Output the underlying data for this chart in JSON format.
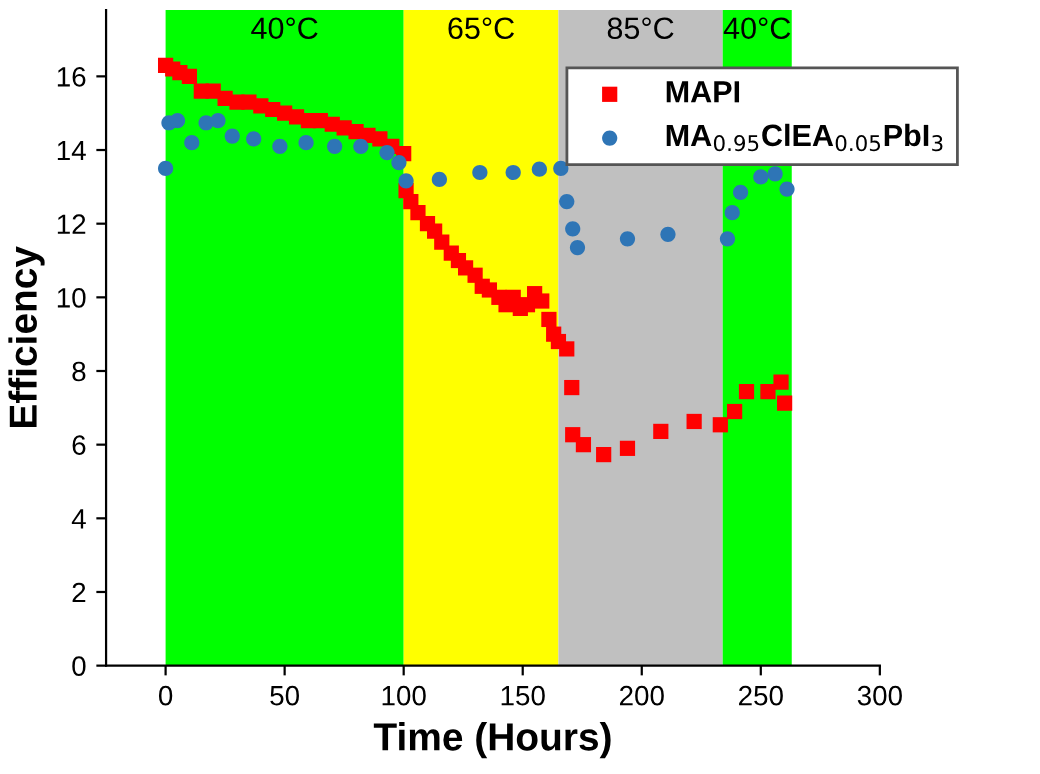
{
  "chart_data": {
    "type": "scatter",
    "xlabel": "Time (Hours)",
    "ylabel": "Efficiency",
    "xlim": [
      -25,
      300
    ],
    "xticks": [
      0,
      50,
      100,
      150,
      200,
      250,
      300
    ],
    "ylim": [
      0,
      17.8
    ],
    "yticks": [
      0,
      2,
      4,
      6,
      8,
      10,
      12,
      14,
      16
    ],
    "legend": "top right",
    "bands": [
      {
        "axis": "x",
        "from": 0,
        "to": 100,
        "label": "40°C",
        "color": "#00ff00"
      },
      {
        "axis": "x",
        "from": 100,
        "to": 165,
        "label": "65°C",
        "color": "#ffff00"
      },
      {
        "axis": "x",
        "from": 165,
        "to": 234,
        "label": "85°C",
        "color": "#c0c0c0"
      },
      {
        "axis": "x",
        "from": 234,
        "to": 263,
        "label": "40°C",
        "color": "#00ff00"
      }
    ],
    "series": [
      {
        "name": "MAPI",
        "color": "#ff0000",
        "marker": "square",
        "x": [
          0,
          3,
          6,
          10,
          15,
          20,
          25,
          30,
          35,
          40,
          45,
          50,
          55,
          60,
          65,
          70,
          75,
          80,
          85,
          90,
          95,
          100,
          101,
          103,
          106,
          110,
          113,
          116,
          120,
          123,
          126,
          130,
          133,
          136,
          140,
          143,
          146,
          149,
          152,
          155,
          158,
          161,
          163,
          165,
          168.5,
          170.6,
          171,
          175.5,
          184,
          194,
          208,
          222,
          233,
          239,
          244,
          253,
          258.5,
          260
        ],
        "values": [
          16.3,
          16.2,
          16.1,
          16.0,
          15.6,
          15.6,
          15.4,
          15.3,
          15.3,
          15.2,
          15.1,
          15.0,
          14.9,
          14.8,
          14.8,
          14.7,
          14.6,
          14.5,
          14.4,
          14.3,
          14.1,
          13.9,
          12.9,
          12.6,
          12.3,
          12.0,
          11.8,
          11.5,
          11.2,
          11.0,
          10.8,
          10.6,
          10.3,
          10.2,
          10.0,
          9.8,
          10.0,
          9.7,
          9.8,
          10.1,
          9.9,
          9.4,
          9.0,
          8.8,
          8.6,
          7.55,
          6.27,
          6.0,
          5.73,
          5.9,
          6.36,
          6.63,
          6.54,
          6.9,
          7.44,
          7.44,
          7.7,
          7.13
        ]
      },
      {
        "name": "MA$_{0.95}$ClEA$_{0.05}$PbI$_{3}$",
        "color": "#2e75b6",
        "marker": "circle",
        "x": [
          0,
          1.4,
          5,
          11,
          17,
          22,
          28,
          37,
          48,
          59,
          71,
          82,
          93,
          98,
          101,
          115,
          132,
          146,
          157,
          166,
          168.5,
          171,
          173,
          194,
          211,
          236,
          238,
          241.5,
          250,
          256,
          261
        ],
        "values": [
          13.5,
          14.74,
          14.8,
          14.2,
          14.74,
          14.8,
          14.38,
          14.3,
          14.1,
          14.2,
          14.1,
          14.1,
          13.93,
          13.66,
          13.16,
          13.2,
          13.39,
          13.39,
          13.48,
          13.5,
          12.6,
          11.86,
          11.35,
          11.59,
          11.71,
          11.59,
          12.3,
          12.85,
          13.27,
          13.35,
          12.94
        ]
      }
    ]
  }
}
